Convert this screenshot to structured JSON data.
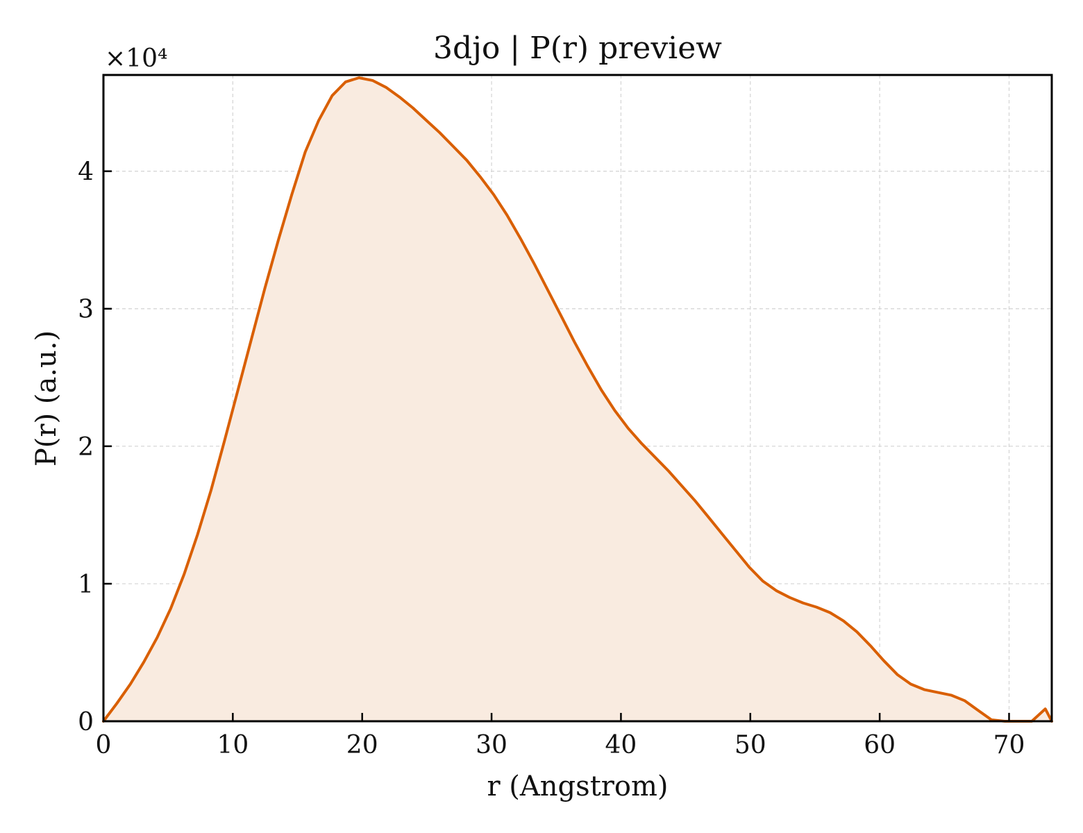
{
  "chart_data": {
    "type": "area",
    "title": "3djo | P(r) preview",
    "xlabel": "r (Angstrom)",
    "ylabel": "P(r) (a.u.)",
    "y_multiplier_label": "×10⁴",
    "xlim": [
      0,
      73.3
    ],
    "ylim": [
      0,
      47000
    ],
    "xticks": [
      0,
      10,
      20,
      30,
      40,
      50,
      60,
      70
    ],
    "yticks": [
      0,
      10000,
      20000,
      30000,
      40000
    ],
    "ytick_labels": [
      "0",
      "1",
      "2",
      "3",
      "4"
    ],
    "grid": true,
    "line_color": "#d95f02",
    "fill_color": "#f9ebe0",
    "series": [
      {
        "x": [
          0,
          1.04,
          2.08,
          3.12,
          4.16,
          5.2,
          6.24,
          7.28,
          8.32,
          9.36,
          10.4,
          11.44,
          12.48,
          13.52,
          14.56,
          15.6,
          16.64,
          17.68,
          18.72,
          19.76,
          20.8,
          21.84,
          22.88,
          23.92,
          24.96,
          26,
          27.04,
          28.08,
          29.12,
          30.16,
          31.2,
          32.24,
          33.28,
          34.32,
          35.36,
          36.4,
          37.44,
          38.48,
          39.52,
          40.56,
          41.6,
          42.64,
          43.68,
          44.72,
          45.76,
          46.8,
          47.84,
          48.88,
          49.92,
          50.96,
          52,
          53.04,
          54.08,
          55.12,
          56.16,
          57.2,
          58.24,
          59.28,
          60.32,
          61.36,
          62.4,
          63.44,
          64.48,
          65.52,
          66.56,
          67.6,
          68.64,
          69.68,
          70.72,
          71.76,
          72.8,
          73.3
        ],
        "y": [
          0,
          1300,
          2700,
          4300,
          6100,
          8200,
          10700,
          13600,
          16800,
          20400,
          24100,
          27800,
          31500,
          35000,
          38300,
          41400,
          43700,
          45500,
          46500,
          46800,
          46600,
          46100,
          45400,
          44600,
          43700,
          42800,
          41800,
          40800,
          39600,
          38300,
          36800,
          35100,
          33300,
          31400,
          29500,
          27600,
          25800,
          24100,
          22600,
          21300,
          20200,
          19200,
          18200,
          17100,
          16000,
          14800,
          13600,
          12400,
          11200,
          10200,
          9500,
          9000,
          8600,
          8300,
          7900,
          7300,
          6500,
          5500,
          4400,
          3400,
          2700,
          2300,
          2100,
          1900,
          1500,
          800,
          100,
          -500,
          -400,
          0,
          900,
          0
        ]
      }
    ]
  }
}
